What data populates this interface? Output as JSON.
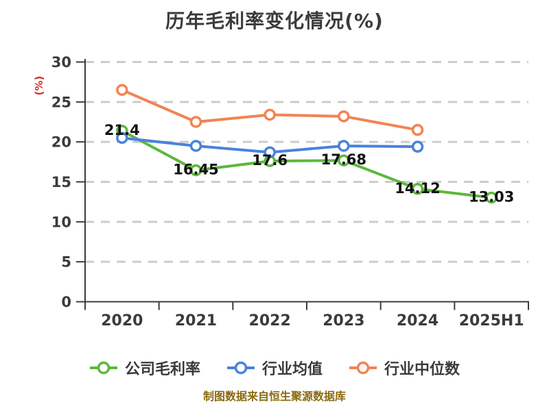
{
  "title": {
    "text": "历年毛利率变化情况(%)",
    "color": "#3b3b3b"
  },
  "y_axis": {
    "unit_label": "(%)",
    "unit_color": "#d32f2f",
    "ticks": [
      0,
      5,
      10,
      15,
      20,
      25,
      30
    ]
  },
  "footer": {
    "text": "制图数据来自恒生聚源数据库",
    "color": "#8a6a0f"
  },
  "chart_data": {
    "type": "line",
    "categories": [
      "2020",
      "2021",
      "2022",
      "2023",
      "2024",
      "2025H1"
    ],
    "series": [
      {
        "id": "company-gross-margin",
        "name": "公司毛利率",
        "color": "#5cb83c",
        "values": [
          21.4,
          16.45,
          17.6,
          17.68,
          14.12,
          13.03
        ],
        "point_labels": [
          "21.4",
          "16.45",
          "17.6",
          "17.68",
          "14.12",
          "13.03"
        ]
      },
      {
        "id": "industry-average",
        "name": "行业均值",
        "color": "#4a82dc",
        "values": [
          20.5,
          19.5,
          18.7,
          19.5,
          19.4
        ]
      },
      {
        "id": "industry-median",
        "name": "行业中位数",
        "color": "#f28352",
        "values": [
          26.5,
          22.5,
          23.4,
          23.2,
          21.5
        ]
      }
    ],
    "ylim": [
      0,
      30
    ],
    "ytick_step": 5,
    "grid": {
      "horizontal": true,
      "style": "dashed",
      "color": "#cccccc"
    },
    "axis_color": "#3b3b3b",
    "tick_label_color": "#3b3b3b",
    "data_label_color": "#121212",
    "legend_position": "bottom"
  }
}
